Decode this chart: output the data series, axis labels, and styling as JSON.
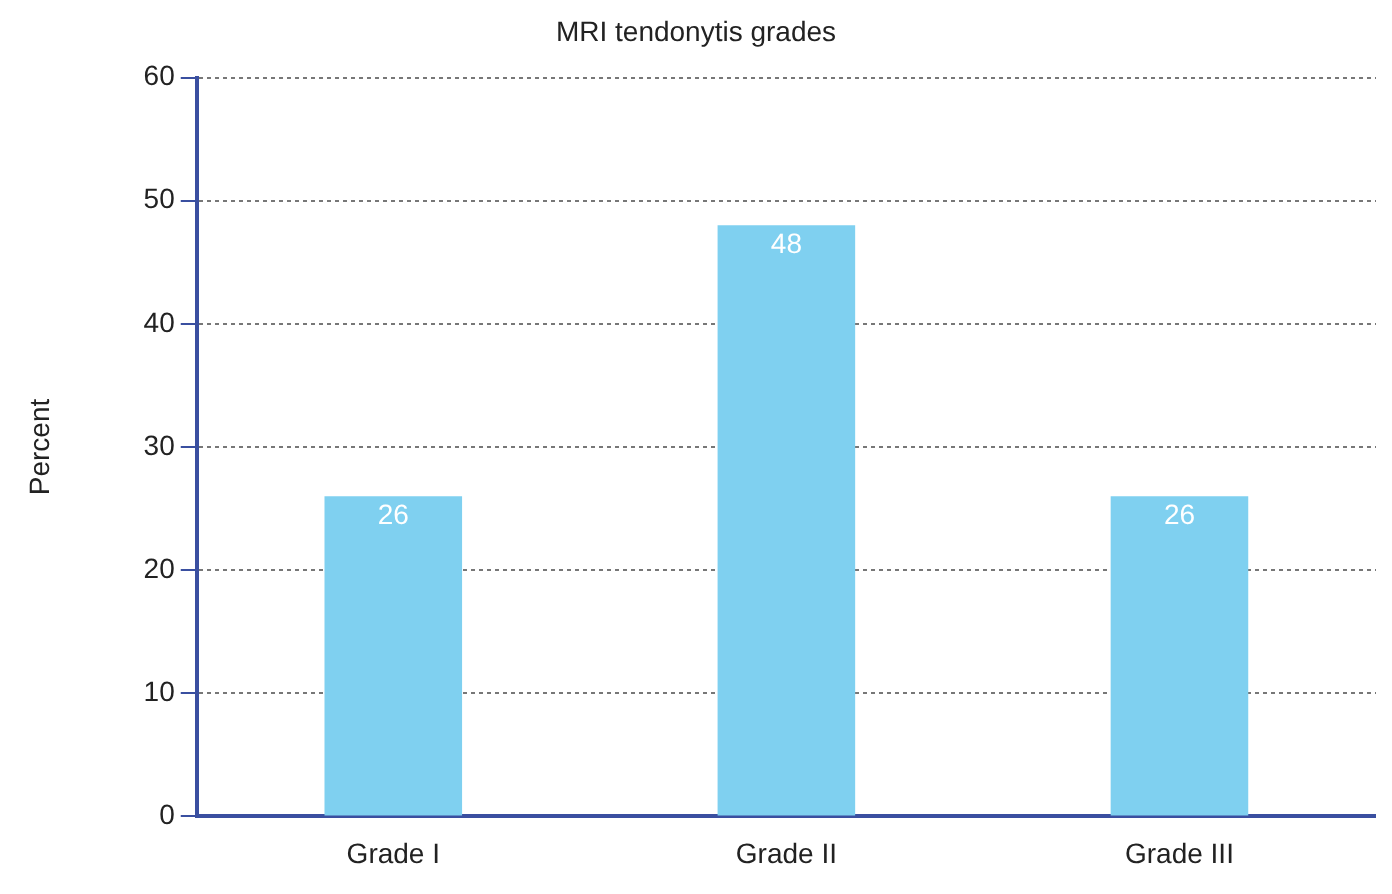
{
  "chart_data": {
    "type": "bar",
    "title": "MRI tendonytis grades",
    "ylabel": "Percent",
    "categories": [
      "Grade I",
      "Grade II",
      "Grade III"
    ],
    "values": [
      26,
      48,
      26
    ],
    "color": "#7fd0f0",
    "ylim": [
      0,
      60
    ],
    "yticks": [
      0,
      10,
      20,
      30,
      40,
      50,
      60
    ],
    "grid": "y",
    "data_labels": true
  }
}
